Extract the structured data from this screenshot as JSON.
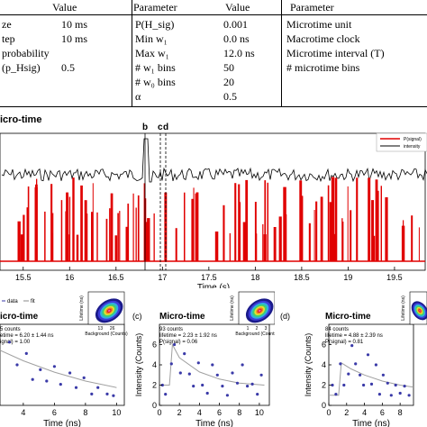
{
  "table": {
    "col1_header": "Value",
    "col2_header": "Parameter",
    "col3_header": "Value",
    "col4_header": "Parameter",
    "rows": [
      {
        "p1": "ze",
        "v1": "10 ms",
        "p2": "P(H_sig)",
        "v2": "0.001",
        "p3": "Microtime unit"
      },
      {
        "p1": "tep",
        "v1": "10 ms",
        "p2": "Min w₁",
        "v2": "0.0 ns",
        "p3": "Macrotime clock"
      },
      {
        "p1": "probability",
        "v1": "",
        "p2": "Max w₁",
        "v2": "12.0 ns",
        "p3": "Microtime interval (T)"
      },
      {
        "p1": "(p_Hsig)",
        "v1": "0.5",
        "p2": "# w₁ bins",
        "v2": "50",
        "p3": "# microtime bins"
      },
      {
        "p1": "",
        "v1": "",
        "p2": "# w₀ bins",
        "v2": "20",
        "p3": ""
      },
      {
        "p1": "",
        "v1": "",
        "p2": "α",
        "v2": "0.5",
        "p3": ""
      }
    ]
  },
  "top_panel": {
    "title": "icro-time",
    "markers": [
      "b",
      "c",
      "d"
    ],
    "legend": [
      "P(signal)",
      "intensity"
    ],
    "colors": {
      "signal": "#e00000",
      "intensity": "#000000",
      "accent": "#3a3aa8"
    }
  },
  "chart_data": [
    {
      "type": "line",
      "xlabel": "Time (s)",
      "x_ticks": [
        "15.5",
        "16",
        "16.5",
        "17",
        "17.5",
        "18",
        "18.5",
        "19",
        "19.5"
      ],
      "xlim": [
        15.25,
        19.85
      ],
      "series": [
        {
          "name": "P(signal)",
          "values": [
            0,
            0.9,
            0,
            0.7,
            0,
            0.95,
            0,
            0.6,
            0,
            1,
            0,
            0.8,
            0,
            0.5,
            0,
            0.9,
            0,
            1,
            0,
            0.7
          ]
        },
        {
          "name": "intensity",
          "values": [
            0.2,
            0.3,
            0.25,
            0.35,
            0.2,
            0.3,
            0.9,
            0.25,
            0.3,
            0.2,
            0.25,
            0.3,
            0.2,
            0.35,
            0.25,
            0.2,
            0.3,
            0.25,
            0.2,
            0.3
          ]
        }
      ]
    },
    {
      "type": "scatter",
      "panel": "",
      "title": "icro-time",
      "lines": [
        "5 counts",
        "etime = 6.20 ± 1.44 ns",
        "ignal) = 1.00"
      ],
      "ylabel": "",
      "xlabel": "Time (ns)",
      "x_ticks": [
        "4",
        "6",
        "8",
        "10"
      ],
      "xlim": [
        2.5,
        10.5
      ],
      "ylim": [
        0,
        10
      ],
      "points": [
        [
          3.1,
          7.8
        ],
        [
          3.6,
          5.0
        ],
        [
          4.2,
          6.4
        ],
        [
          4.6,
          3.2
        ],
        [
          5.1,
          4.4
        ],
        [
          5.5,
          3.0
        ],
        [
          6.0,
          4.8
        ],
        [
          6.4,
          2.6
        ],
        [
          7.0,
          4.0
        ],
        [
          7.4,
          2.2
        ],
        [
          7.9,
          3.4
        ],
        [
          8.4,
          1.4
        ],
        [
          8.8,
          2.2
        ],
        [
          9.4,
          1.4
        ],
        [
          9.8,
          1.2
        ]
      ],
      "fit": [
        [
          2.5,
          6.8
        ],
        [
          4,
          5.5
        ],
        [
          6,
          4.1
        ],
        [
          8,
          3.0
        ],
        [
          10,
          2.2
        ]
      ],
      "legend": [
        "data",
        "fit"
      ],
      "inset": {
        "xlabel": "Background (Counts)",
        "ylabel": "Lifetime (ns)",
        "x_ticks": [
          "13",
          "26"
        ]
      }
    },
    {
      "type": "scatter",
      "panel": "(c)",
      "title": "Micro-time",
      "lines": [
        "93 counts",
        "lifetime = 2.23 ± 1.92 ns",
        "P(signal) = 0.06"
      ],
      "ylabel": "Intensity (Counts)",
      "y_ticks": [
        "0",
        "2",
        "4",
        "6"
      ],
      "xlabel": "Time (ns)",
      "x_ticks": [
        "0",
        "2",
        "4",
        "6",
        "8",
        "10"
      ],
      "xlim": [
        0,
        11
      ],
      "ylim": [
        0,
        8
      ],
      "points": [
        [
          0.3,
          2.0
        ],
        [
          0.6,
          1.1
        ],
        [
          1.2,
          4.1
        ],
        [
          1.5,
          6.0
        ],
        [
          2.1,
          3.2
        ],
        [
          2.5,
          5.1
        ],
        [
          3.0,
          3.1
        ],
        [
          3.4,
          1.9
        ],
        [
          3.9,
          4.2
        ],
        [
          4.3,
          2.0
        ],
        [
          4.8,
          1.2
        ],
        [
          5.3,
          4.0
        ],
        [
          5.8,
          3.0
        ],
        [
          6.3,
          1.9
        ],
        [
          6.8,
          1.0
        ],
        [
          7.3,
          3.2
        ],
        [
          7.8,
          2.2
        ],
        [
          8.3,
          4.0
        ],
        [
          8.8,
          1.9
        ],
        [
          9.3,
          2.1
        ],
        [
          9.8,
          1.1
        ],
        [
          10.2,
          3.0
        ]
      ],
      "fit": [
        [
          0,
          2.0
        ],
        [
          1.0,
          2.0
        ],
        [
          1.3,
          6.0
        ],
        [
          2,
          4.7
        ],
        [
          4,
          3.3
        ],
        [
          6,
          2.6
        ],
        [
          8,
          2.2
        ],
        [
          10.5,
          2.0
        ]
      ],
      "inset": {
        "xlabel": "Background (Counts)",
        "ylabel": "Lifetime (ns)",
        "x_ticks": [
          "1",
          "2",
          "3"
        ]
      }
    },
    {
      "type": "scatter",
      "panel": "(d)",
      "title": "Micro-time",
      "lines": [
        "84 counts",
        "lifetime = 4.88 ± 2.39 ns",
        "P(signal) = 0.81"
      ],
      "ylabel": "Intensity (Counts)",
      "y_ticks": [
        "0",
        "2",
        "4",
        "6"
      ],
      "xlabel": "Time (ns)",
      "x_ticks": [
        "0",
        "2",
        "4",
        "6",
        "8"
      ],
      "xlim": [
        0,
        9.5
      ],
      "ylim": [
        0,
        8
      ],
      "points": [
        [
          0.4,
          2.0
        ],
        [
          0.8,
          1.1
        ],
        [
          1.3,
          4.1
        ],
        [
          1.7,
          2.0
        ],
        [
          2.2,
          3.1
        ],
        [
          2.6,
          5.9
        ],
        [
          3.0,
          4.1
        ],
        [
          3.5,
          3.0
        ],
        [
          3.9,
          2.0
        ],
        [
          4.4,
          5.0
        ],
        [
          4.8,
          2.1
        ],
        [
          5.3,
          4.0
        ],
        [
          5.7,
          1.1
        ],
        [
          6.1,
          3.0
        ],
        [
          6.6,
          2.2
        ],
        [
          7.0,
          1.0
        ],
        [
          7.5,
          2.0
        ],
        [
          8.0,
          1.2
        ],
        [
          8.5,
          1.9
        ],
        [
          9.0,
          1.0
        ]
      ],
      "fit": [
        [
          0,
          1.0
        ],
        [
          1.1,
          1.0
        ],
        [
          1.4,
          4.2
        ],
        [
          2.5,
          3.6
        ],
        [
          4,
          3.0
        ],
        [
          6,
          2.4
        ],
        [
          8,
          2.0
        ],
        [
          9.5,
          1.8
        ]
      ],
      "inset": {
        "xlabel": "",
        "ylabel": "Lifetime (ns)",
        "x_ticks": []
      }
    }
  ]
}
